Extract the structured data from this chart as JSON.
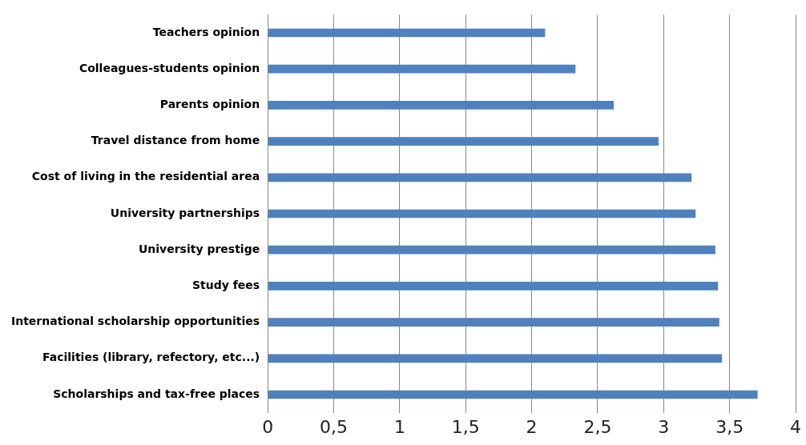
{
  "chart_data": {
    "type": "bar",
    "orientation": "horizontal",
    "categories": [
      "Teachers opinion",
      "Colleagues-students opinion",
      "Parents opinion",
      "Travel distance from home",
      "Cost of living in the residential area",
      "University partnerships",
      "University prestige",
      "Study fees",
      "International scholarship opportunities",
      "Facilities (library, refectory, etc...)",
      "Scholarships and tax-free places"
    ],
    "values": [
      2.1,
      2.33,
      2.62,
      2.96,
      3.21,
      3.24,
      3.39,
      3.41,
      3.42,
      3.44,
      3.71
    ],
    "color": "#4f81bd",
    "xlim": [
      0,
      4
    ],
    "xticks": [
      0,
      {
        "value": 0.5,
        "label": "0,5"
      },
      1,
      {
        "value": 1.5,
        "label": "1,5"
      },
      2,
      {
        "value": 2.5,
        "label": "2,5"
      },
      3,
      {
        "value": 3.5,
        "label": "3,5"
      },
      4
    ],
    "grid": "x",
    "legend": false
  }
}
